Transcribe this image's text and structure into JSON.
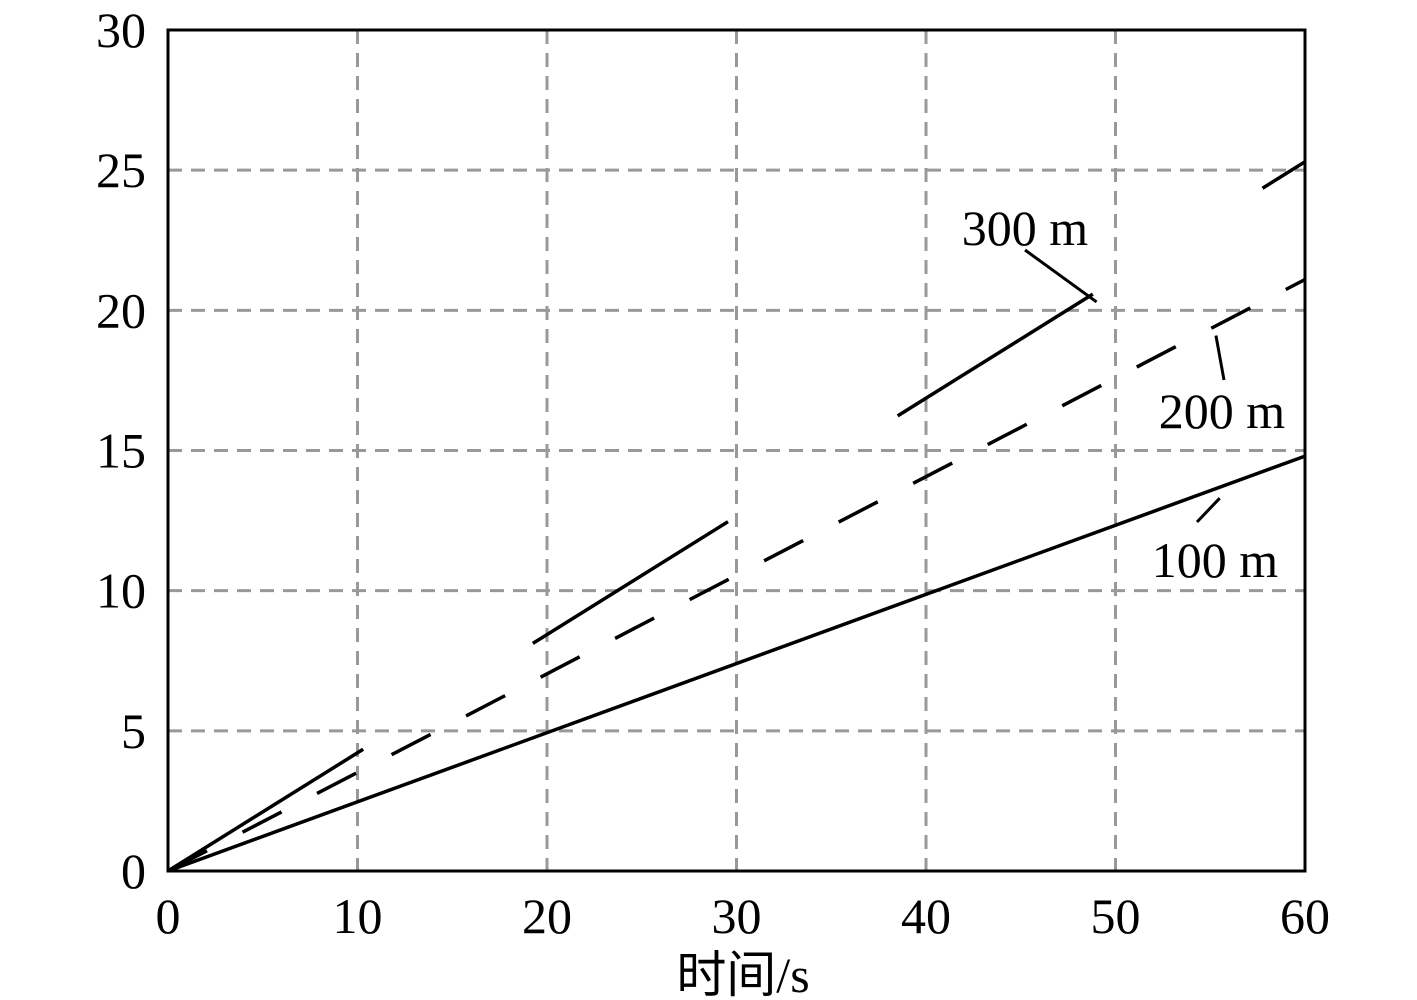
{
  "chart_data": {
    "type": "line",
    "title": "",
    "xlabel": "时间/s",
    "ylabel": "",
    "xlim": [
      0,
      60
    ],
    "ylim": [
      0,
      30
    ],
    "xticks": [
      0,
      10,
      20,
      30,
      40,
      50,
      60
    ],
    "yticks": [
      0,
      5,
      10,
      15,
      20,
      25,
      30
    ],
    "grid": true,
    "series": [
      {
        "name": "100 m",
        "style": "solid",
        "x": [
          0,
          60
        ],
        "y": [
          0,
          14.8
        ],
        "label_at": [
          55.5,
          13.3
        ]
      },
      {
        "name": "200 m",
        "style": "dashed",
        "x": [
          0,
          60
        ],
        "y": [
          0,
          21.1
        ],
        "label_at": [
          55.3,
          19.1
        ]
      },
      {
        "name": "300 m",
        "style": "long-dash",
        "x": [
          0,
          60
        ],
        "y": [
          0,
          25.3
        ],
        "label_at": [
          49,
          20.3
        ]
      }
    ],
    "colors": {
      "lines": "#000000",
      "grid": "#999999",
      "frame": "#000000"
    }
  }
}
